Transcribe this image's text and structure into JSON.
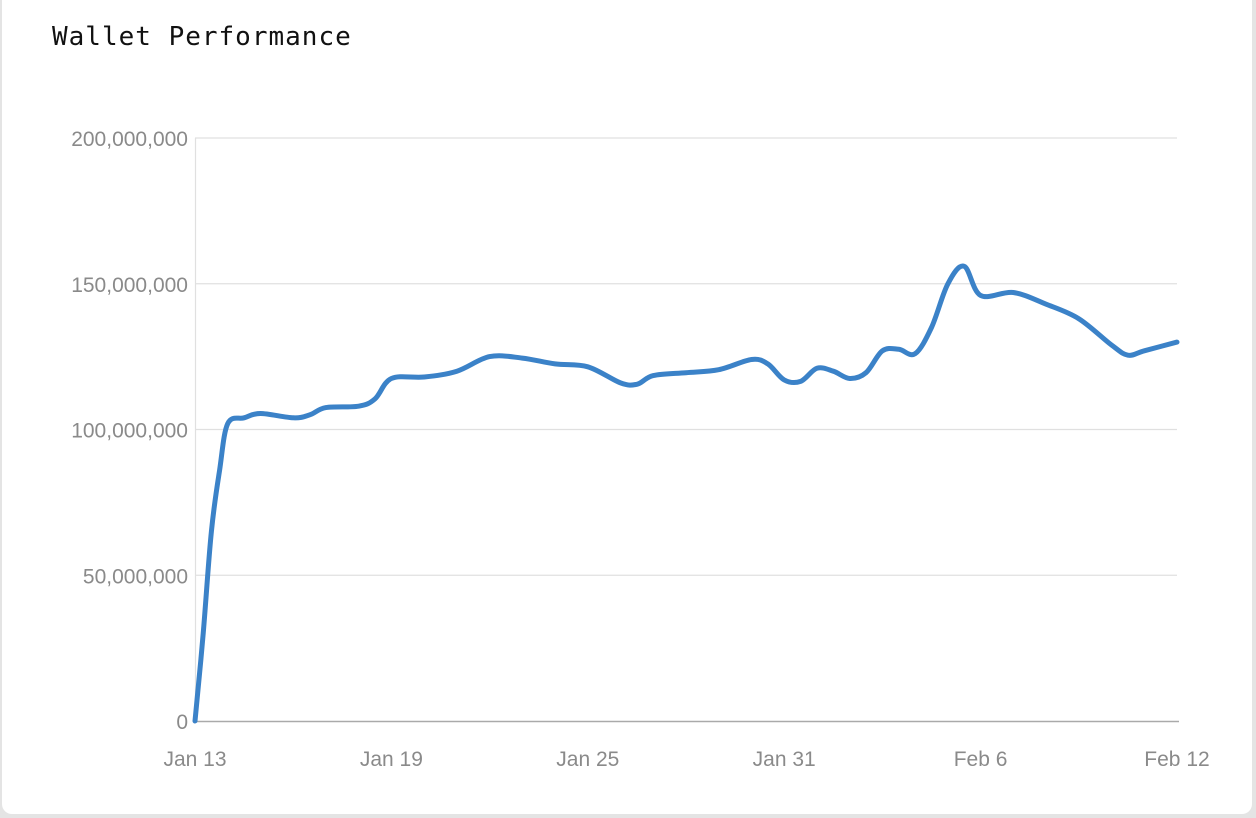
{
  "chart_data": {
    "type": "line",
    "title": "Wallet Performance",
    "xlabel": "",
    "ylabel": "",
    "x_start": "Jan 13",
    "x_ticks": [
      "Jan 13",
      "Jan 19",
      "Jan 25",
      "Jan 31",
      "Feb 6",
      "Feb 12"
    ],
    "y_ticks": [
      "200,000,000",
      "150,000,000",
      "100,000,000",
      "50,000,000",
      "0"
    ],
    "ylim": [
      0,
      200000000
    ],
    "grid": true,
    "legend": "none",
    "colors": {
      "line": "#3b82c8",
      "grid": "#e0e0e0",
      "axis": "#aaaaaa",
      "tick_text": "#8a8a8a"
    },
    "series": [
      {
        "dates": [
          "Jan 13",
          "Jan 13",
          "Jan 13",
          "Jan 13",
          "Jan 14",
          "Jan 14",
          "Jan 15",
          "Jan 16",
          "Jan 16",
          "Jan 17",
          "Jan 18",
          "Jan 18",
          "Jan 19",
          "Jan 20",
          "Jan 21",
          "Jan 22",
          "Jan 23",
          "Jan 24",
          "Jan 25",
          "Jan 26",
          "Jan 26",
          "Jan 27",
          "Jan 28",
          "Jan 29",
          "Jan 30",
          "Jan 30",
          "Jan 31",
          "Jan 31",
          "Feb 1",
          "Feb 1",
          "Feb 2",
          "Feb 2",
          "Feb 3",
          "Feb 3",
          "Feb 4",
          "Feb 4",
          "Feb 5",
          "Feb 5",
          "Feb 6",
          "Feb 7",
          "Feb 8",
          "Feb 9",
          "Feb 10",
          "Feb 10",
          "Feb 11",
          "Feb 12"
        ],
        "values": [
          0,
          30000000,
          65000000,
          86000000,
          102000000,
          104000000,
          105500000,
          104000000,
          105000000,
          107500000,
          108000000,
          110500000,
          117500000,
          118000000,
          120000000,
          125000000,
          124500000,
          122500000,
          121500000,
          116000000,
          115500000,
          118500000,
          119500000,
          120500000,
          124000000,
          122500000,
          117000000,
          116500000,
          121000000,
          120000000,
          117500000,
          119500000,
          127000000,
          127500000,
          126000000,
          135000000,
          150000000,
          156000000,
          146000000,
          147000000,
          143000000,
          138000000,
          129000000,
          125500000,
          127000000,
          130000000
        ]
      }
    ]
  }
}
